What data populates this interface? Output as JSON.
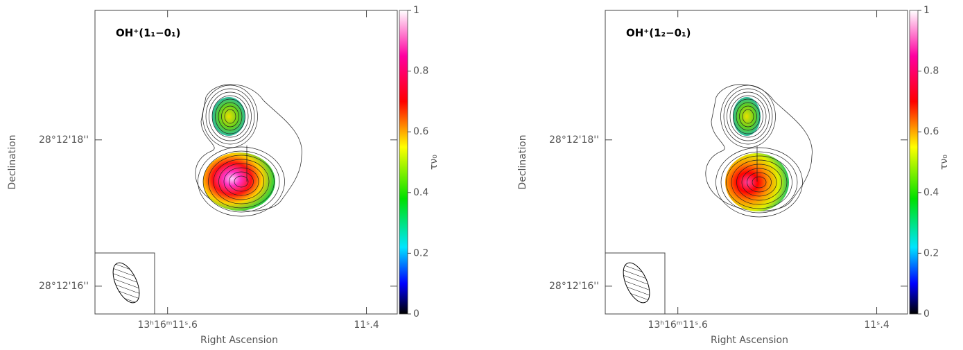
{
  "chart_data": [
    {
      "type": "image",
      "title": "OH⁺(1₁−0₁)",
      "x_label": "Right Ascension",
      "y_label": "Declination",
      "xlim": [
        11.673,
        11.369
      ],
      "ylim": [
        15.62,
        19.77
      ],
      "xticks": [
        {
          "value": 11.6,
          "label": "13ʰ16ᵐ11ˢ.6"
        },
        {
          "value": 11.4,
          "label": "11ˢ.4"
        }
      ],
      "yticks": [
        {
          "value": 18,
          "label": "28°12'18''"
        },
        {
          "value": 16,
          "label": "28°12'16''"
        }
      ],
      "colorbar": {
        "label": "τν₀",
        "lim": [
          0,
          1
        ],
        "ticks": [
          0,
          0.2,
          0.4,
          0.6,
          0.8,
          1
        ]
      }
    },
    {
      "type": "image",
      "title": "OH⁺(1₂−0₁)",
      "x_label": "Right Ascension",
      "y_label": "Declination",
      "xlim": [
        11.673,
        11.369
      ],
      "ylim": [
        15.62,
        19.77
      ],
      "xticks": [
        {
          "value": 11.6,
          "label": "13ʰ16ᵐ11ˢ.6"
        },
        {
          "value": 11.4,
          "label": "11ˢ.4"
        }
      ],
      "yticks": [
        {
          "value": 18,
          "label": "28°12'18''"
        },
        {
          "value": 16,
          "label": "28°12'16''"
        }
      ],
      "colorbar": {
        "label": "τν₀",
        "lim": [
          0,
          1
        ],
        "ticks": [
          0,
          0.2,
          0.4,
          0.6,
          0.8,
          1
        ]
      }
    }
  ]
}
